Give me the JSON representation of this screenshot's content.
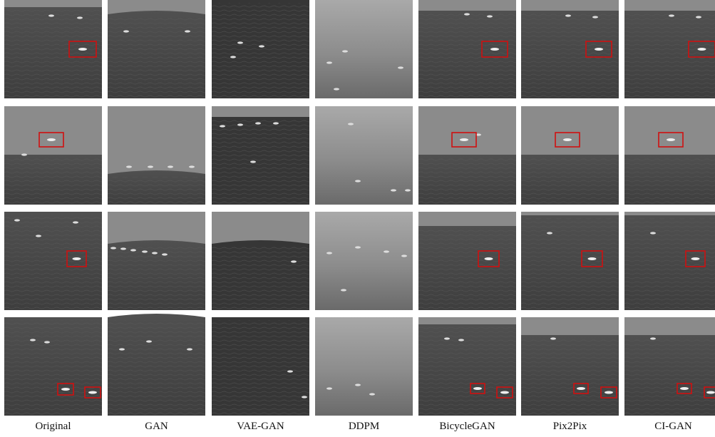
{
  "columns": [
    "Original",
    "GAN",
    "VAE-GAN",
    "DDPM",
    "BicycleGAN",
    "Pix2Pix",
    "CI-GAN"
  ]
}
